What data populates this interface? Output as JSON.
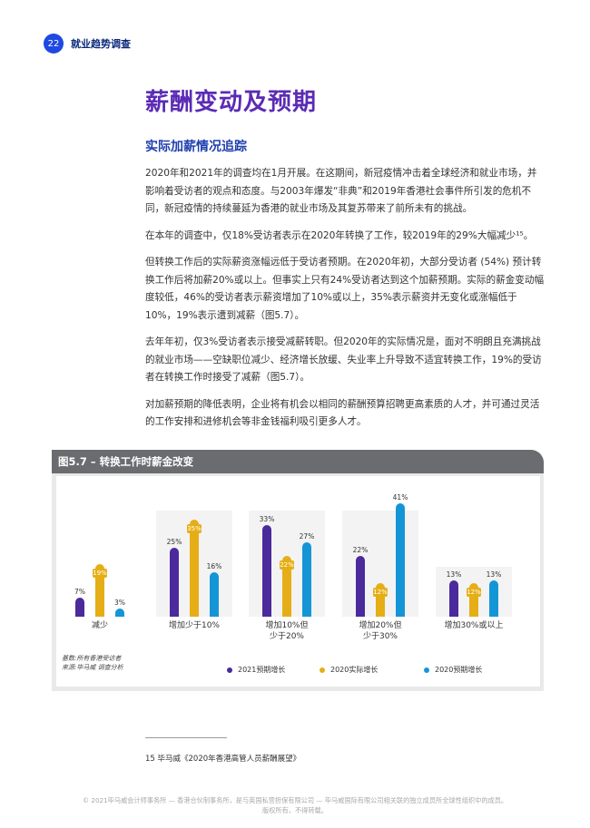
{
  "header": {
    "page_number": "22",
    "title": "就业趋势调查"
  },
  "page_title": "薪酬变动及预期",
  "section_title": "实际加薪情况追踪",
  "paragraphs": [
    "2020年和2021年的调查均在1月开展。在这期间，新冠疫情冲击着全球经济和就业市场，并影响着受访者的观点和态度。与2003年爆发“非典”和2019年香港社会事件所引发的危机不同，新冠疫情的持续蔓延为香港的就业市场及其复苏带来了前所未有的挑战。",
    "在本年的调查中，仅18%受访者表示在2020年转换了工作，较2019年的29%大幅减少¹⁵。",
    "但转换工作后的实际薪资涨幅远低于受访者预期。在2020年初，大部分受访者 (54%) 预计转换工作后将加薪20%或以上。但事实上只有24%受访者达到这个加薪预期。实际的薪金变动幅度较低，46%的受访者表示薪资增加了10%或以上，35%表示薪资并无变化或涨幅低于10%，19%表示遭到减薪（图5.7）。",
    "去年年初，仅3%受访者表示接受减薪转职。但2020年的实际情况是，面对不明朗且充满挑战的就业市场——空缺职位减少、经济增长放缓、失业率上升导致不适宜转换工作，19%的受访者在转换工作时接受了减薪（图5.7）。",
    "对加薪预期的降低表明，企业将有机会以相同的薪酬预算招聘更高素质的人才，并可通过灵活的工作安排和进修机会等非金钱福利吸引更多人才。"
  ],
  "figure": {
    "title": "图5.7 – 转换工作时薪金改变",
    "notes": [
      "基数:所有香港受访者",
      "来源:毕马威 调查分析"
    ],
    "legend": [
      {
        "label": "2021预期增长",
        "color": "#4b2a9c"
      },
      {
        "label": "2020实际增长",
        "color": "#e6ae16"
      },
      {
        "label": "2020预期增长",
        "color": "#1496d6"
      }
    ]
  },
  "chart_data": {
    "type": "bar",
    "title": "图5.7 – 转换工作时薪金改变",
    "categories": [
      "减少",
      "增加少于10%",
      "增加10%但少于20%",
      "增加20%但少于30%",
      "增加30%或以上"
    ],
    "series": [
      {
        "name": "2021预期增长",
        "color": "#4b2a9c",
        "values": [
          7,
          25,
          33,
          22,
          13
        ]
      },
      {
        "name": "2020实际增长",
        "color": "#e6ae16",
        "values": [
          19,
          35,
          22,
          12,
          12
        ]
      },
      {
        "name": "2020预期增长",
        "color": "#1496d6",
        "values": [
          3,
          16,
          27,
          41,
          13
        ]
      }
    ],
    "value_labels": [
      [
        "7%",
        "19%",
        "3%"
      ],
      [
        "25%",
        "35%",
        "16%"
      ],
      [
        "33%",
        "22%",
        "27%"
      ],
      [
        "22%",
        "12%",
        "41%"
      ],
      [
        "13%",
        "12%",
        "13%"
      ]
    ],
    "category_labels": [
      [
        "减少"
      ],
      [
        "增加少于10%"
      ],
      [
        "增加10%但",
        "少于20%"
      ],
      [
        "增加20%但",
        "少于30%"
      ],
      [
        "增加30%或以上"
      ]
    ],
    "xlabel": "",
    "ylabel": "",
    "ylim": [
      0,
      45
    ],
    "grid": false,
    "legend_position": "bottom",
    "notes": [
      "基数:所有香港受访者",
      "来源:毕马威 调查分析"
    ]
  },
  "footnote": "15 毕马威《2020年香港高管人员薪酬展望》",
  "copyright": [
    "© 2021毕马威会计师事务所 — 香港合伙制事务所，是与英国私营担保有限公司 — 毕马威国际有限公司相关联的独立成员所全球性组织中的成员。",
    "版权所有，不得转载。"
  ]
}
